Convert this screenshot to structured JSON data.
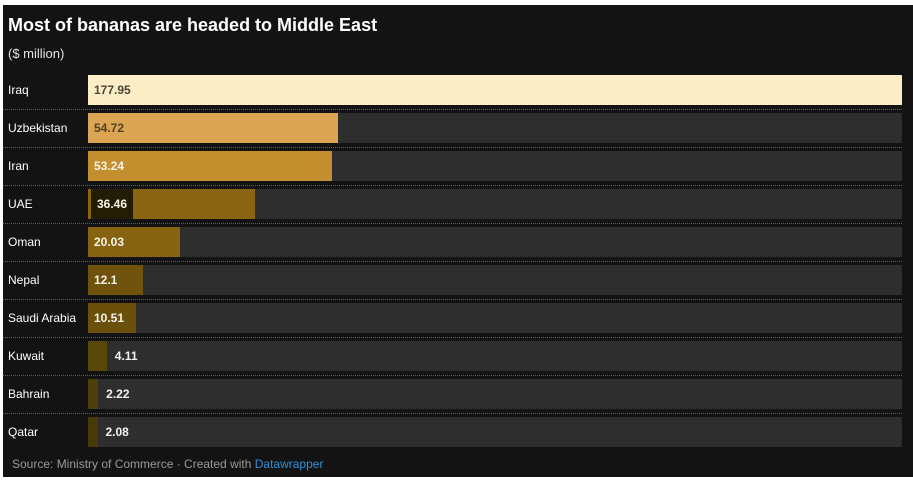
{
  "title": "Most of bananas are headed to Middle East",
  "subtitle": "($ million)",
  "footer": {
    "prefix": "Source: Ministry of Commerce · Created with ",
    "link_label": "Datawrapper",
    "link_color": "#3090d8"
  },
  "colors": {
    "page_bg": "#ffffff",
    "canvas_bg": "#131313",
    "track": "#2e2e2e",
    "separator_dots": "#5e5e5e",
    "title_text": "#ffffff",
    "subtitle_text": "#e3e3e3",
    "category_text": "#ffffff",
    "footer_text": "#9a9a9a"
  },
  "chart_data": {
    "type": "bar",
    "orientation": "horizontal",
    "title": "Most of bananas are headed to Middle East",
    "subtitle": "($ million)",
    "unit": "$ million",
    "xlim": [
      0,
      177.95
    ],
    "grid": false,
    "legend": "none",
    "categories": [
      "Iraq",
      "Uzbekistan",
      "Iran",
      "UAE",
      "Oman",
      "Nepal",
      "Saudi Arabia",
      "Kuwait",
      "Bahrain",
      "Qatar"
    ],
    "values": [
      177.95,
      54.72,
      53.24,
      36.46,
      20.03,
      12.1,
      10.51,
      4.11,
      2.22,
      2.08
    ],
    "bars": [
      {
        "category": "Iraq",
        "value": 177.95,
        "display": "177.95",
        "color": "#fbeec7",
        "label_color": "#4a4435",
        "label_position": "inside"
      },
      {
        "category": "Uzbekistan",
        "value": 54.72,
        "display": "54.72",
        "color": "#dca553",
        "label_color": "#4f4224",
        "label_position": "inside"
      },
      {
        "category": "Iran",
        "value": 53.24,
        "display": "53.24",
        "color": "#c28e2e",
        "label_color": "#f7f3e8",
        "label_position": "inside"
      },
      {
        "category": "UAE",
        "value": 36.46,
        "display": "36.46",
        "color": "#8a6410",
        "label_color": "#f7f3e8",
        "label_position": "inside",
        "label_chip": true,
        "chip_color": "#241d06"
      },
      {
        "category": "Oman",
        "value": 20.03,
        "display": "20.03",
        "color": "#856310",
        "label_color": "#f7f3e8",
        "label_position": "inside"
      },
      {
        "category": "Nepal",
        "value": 12.1,
        "display": "12.1",
        "color": "#6f530c",
        "label_color": "#f7f3e8",
        "label_position": "inside"
      },
      {
        "category": "Saudi Arabia",
        "value": 10.51,
        "display": "10.51",
        "color": "#6b500c",
        "label_color": "#f7f3e8",
        "label_position": "inside"
      },
      {
        "category": "Kuwait",
        "value": 4.11,
        "display": "4.11",
        "color": "#574708",
        "label_color": "#f2f2f2",
        "label_position": "outside"
      },
      {
        "category": "Bahrain",
        "value": 2.22,
        "display": "2.22",
        "color": "#4d3f09",
        "label_color": "#f2f2f2",
        "label_position": "outside"
      },
      {
        "category": "Qatar",
        "value": 2.08,
        "display": "2.08",
        "color": "#473a08",
        "label_color": "#f2f2f2",
        "label_position": "outside"
      }
    ]
  }
}
